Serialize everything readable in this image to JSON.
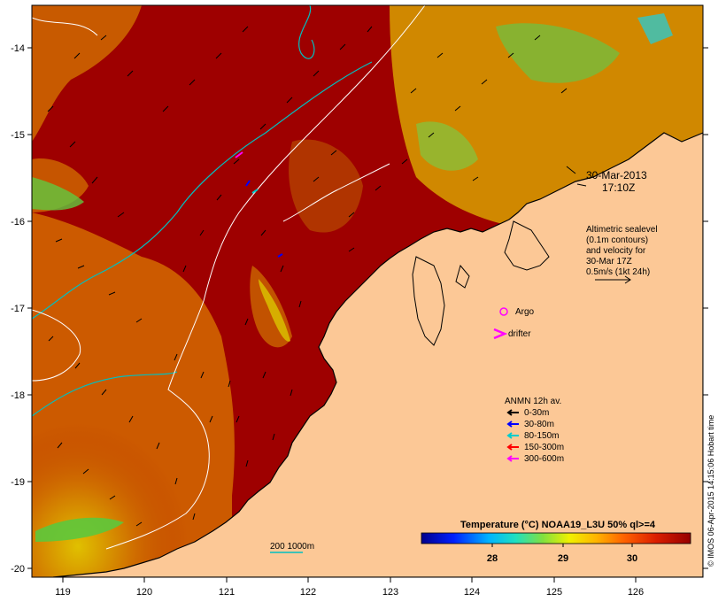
{
  "map": {
    "lon_ticks": [
      "119",
      "120",
      "121",
      "122",
      "123",
      "124",
      "125",
      "126"
    ],
    "lat_ticks": [
      "-14",
      "-15",
      "-16",
      "-17",
      "-18",
      "-19",
      "-20"
    ]
  },
  "annotations": {
    "date": "30-Mar-2013",
    "time": "17:10Z",
    "altimetry": [
      "Altimetric sealevel",
      "(0.1m contours)",
      "and velocity for",
      "30-Mar 17Z",
      "0.5m/s (1kt 24h)"
    ],
    "argo": "Argo",
    "drifter": "drifter",
    "isobaths": "200 1000m"
  },
  "anmn": {
    "title": "ANMN 12h av.",
    "items": [
      {
        "label": "0-30m",
        "color": "#000000"
      },
      {
        "label": "30-80m",
        "color": "#0000ff"
      },
      {
        "label": "80-150m",
        "color": "#00cccc"
      },
      {
        "label": "150-300m",
        "color": "#ff0000"
      },
      {
        "label": "300-600m",
        "color": "#ff00ff"
      }
    ]
  },
  "colorbar": {
    "title": "Temperature (°C) NOAA19_L3U 50% ql>=4",
    "ticks": [
      "28",
      "29",
      "30"
    ]
  },
  "credit": "© IMOS 06-Apr-2015 14:15:06 Hobart time",
  "colors": {
    "land": "#fcc896",
    "warm_sea": "#9e0000",
    "ocean_orange": "#d66400",
    "yellow": "#e8c800",
    "green": "#66cc33",
    "contour": "#00c0c0"
  }
}
